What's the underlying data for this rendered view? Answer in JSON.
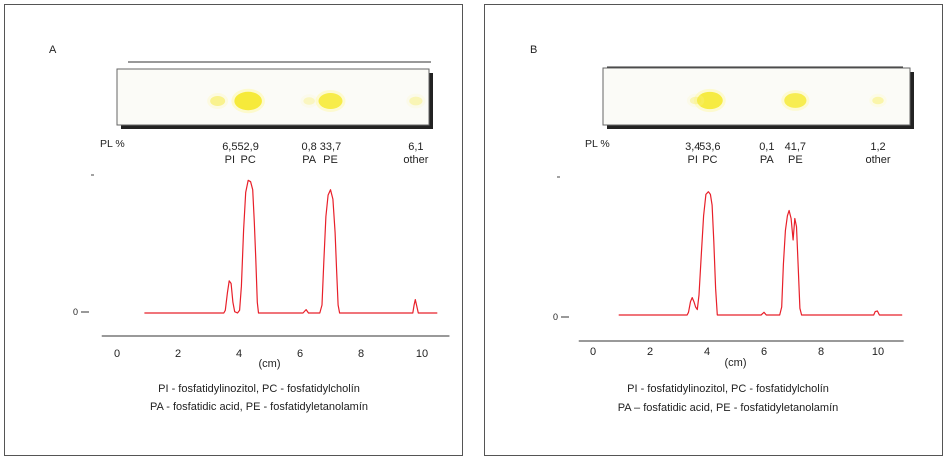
{
  "chart_data": [
    {
      "type": "line",
      "panel_label": "A",
      "pl_label": "PL %",
      "lipids": [
        {
          "name": "PI",
          "percent": "6,5",
          "x_cm": 3.7
        },
        {
          "name": "PC",
          "percent": "52,9",
          "x_cm": 4.3
        },
        {
          "name": "PA",
          "percent": "0,8",
          "x_cm": 6.3
        },
        {
          "name": "PE",
          "percent": "33,7",
          "x_cm": 7.0
        },
        {
          "name": "other",
          "percent": "6,1",
          "x_cm": 9.8
        }
      ],
      "xlabel": "(cm)",
      "x_ticks": [
        "0",
        "2",
        "4",
        "6",
        "8",
        "10"
      ],
      "y_ticks": [
        "0"
      ],
      "xlim": [
        -0.5,
        10.9
      ],
      "ylim": [
        0,
        1
      ],
      "series": [
        {
          "color": "#e8202a",
          "points": [
            [
              0.9,
              0
            ],
            [
              3.5,
              0
            ],
            [
              3.55,
              0.02
            ],
            [
              3.62,
              0.15
            ],
            [
              3.68,
              0.24
            ],
            [
              3.74,
              0.22
            ],
            [
              3.8,
              0.08
            ],
            [
              3.86,
              0.01
            ],
            [
              3.95,
              0
            ],
            [
              4.02,
              0.02
            ],
            [
              4.08,
              0.2
            ],
            [
              4.15,
              0.62
            ],
            [
              4.22,
              0.9
            ],
            [
              4.3,
              0.99
            ],
            [
              4.38,
              0.98
            ],
            [
              4.45,
              0.92
            ],
            [
              4.5,
              0.68
            ],
            [
              4.55,
              0.4
            ],
            [
              4.6,
              0.08
            ],
            [
              4.64,
              0
            ],
            [
              5.0,
              0
            ],
            [
              6.1,
              0
            ],
            [
              6.2,
              0.025
            ],
            [
              6.28,
              0
            ],
            [
              6.65,
              0
            ],
            [
              6.72,
              0.06
            ],
            [
              6.78,
              0.38
            ],
            [
              6.85,
              0.72
            ],
            [
              6.92,
              0.88
            ],
            [
              7.0,
              0.92
            ],
            [
              7.08,
              0.85
            ],
            [
              7.15,
              0.6
            ],
            [
              7.2,
              0.32
            ],
            [
              7.25,
              0.06
            ],
            [
              7.3,
              0
            ],
            [
              9.7,
              0
            ],
            [
              9.74,
              0.06
            ],
            [
              9.78,
              0.1
            ],
            [
              9.83,
              0.05
            ],
            [
              9.88,
              0
            ],
            [
              10.5,
              0
            ]
          ]
        }
      ],
      "legend_lines": [
        "PI - fosfatidylinozitol, PC - fosfatidylcholín",
        "PA - fosfatidic acid, PE - fosfatidyletanolamín"
      ],
      "plate_spots": [
        {
          "x_cm": 3.3,
          "size": 0.5,
          "intensity": 0.5
        },
        {
          "x_cm": 4.3,
          "size": 1.2,
          "intensity": 1.0
        },
        {
          "x_cm": 6.3,
          "size": 0.3,
          "intensity": 0.25
        },
        {
          "x_cm": 7.0,
          "size": 1.0,
          "intensity": 0.9
        },
        {
          "x_cm": 9.8,
          "size": 0.4,
          "intensity": 0.3
        }
      ]
    },
    {
      "type": "line",
      "panel_label": "B",
      "pl_label": "PL %",
      "lipids": [
        {
          "name": "PI",
          "percent": "3,4",
          "x_cm": 3.5
        },
        {
          "name": "PC",
          "percent": "53,6",
          "x_cm": 4.1
        },
        {
          "name": "PA",
          "percent": "0,1",
          "x_cm": 6.1
        },
        {
          "name": "PE",
          "percent": "41,7",
          "x_cm": 7.1
        },
        {
          "name": "other",
          "percent": "1,2",
          "x_cm": 10.0
        }
      ],
      "xlabel": "(cm)",
      "x_ticks": [
        "0",
        "2",
        "4",
        "6",
        "8",
        "10"
      ],
      "y_ticks": [
        "0"
      ],
      "xlim": [
        -0.5,
        10.9
      ],
      "ylim": [
        0,
        1
      ],
      "series": [
        {
          "color": "#e8202a",
          "points": [
            [
              0.9,
              0
            ],
            [
              3.3,
              0
            ],
            [
              3.35,
              0.02
            ],
            [
              3.42,
              0.1
            ],
            [
              3.48,
              0.13
            ],
            [
              3.54,
              0.1
            ],
            [
              3.6,
              0.06
            ],
            [
              3.66,
              0.04
            ],
            [
              3.72,
              0.15
            ],
            [
              3.8,
              0.45
            ],
            [
              3.88,
              0.74
            ],
            [
              3.96,
              0.9
            ],
            [
              4.05,
              0.92
            ],
            [
              4.12,
              0.9
            ],
            [
              4.18,
              0.82
            ],
            [
              4.24,
              0.55
            ],
            [
              4.3,
              0.2
            ],
            [
              4.36,
              0
            ],
            [
              5.0,
              0
            ],
            [
              5.9,
              0
            ],
            [
              6.0,
              0.02
            ],
            [
              6.08,
              0
            ],
            [
              6.55,
              0
            ],
            [
              6.62,
              0.06
            ],
            [
              6.68,
              0.38
            ],
            [
              6.75,
              0.63
            ],
            [
              6.82,
              0.74
            ],
            [
              6.88,
              0.78
            ],
            [
              6.95,
              0.72
            ],
            [
              7.02,
              0.56
            ],
            [
              7.08,
              0.72
            ],
            [
              7.14,
              0.66
            ],
            [
              7.2,
              0.36
            ],
            [
              7.26,
              0.05
            ],
            [
              7.32,
              0
            ],
            [
              9.85,
              0
            ],
            [
              9.9,
              0.025
            ],
            [
              9.98,
              0.03
            ],
            [
              10.05,
              0
            ],
            [
              10.85,
              0
            ]
          ]
        }
      ],
      "legend_lines": [
        "PI - fosfatidylinozitol, PC - fosfatidylcholín",
        "PA – fosfatidic acid, PE - fosfatidyletanolamín"
      ],
      "plate_spots": [
        {
          "x_cm": 4.1,
          "size": 1.1,
          "intensity": 0.95
        },
        {
          "x_cm": 3.6,
          "size": 0.3,
          "intensity": 0.3
        },
        {
          "x_cm": 7.1,
          "size": 0.9,
          "intensity": 0.85
        },
        {
          "x_cm": 10.0,
          "size": 0.3,
          "intensity": 0.35
        }
      ]
    }
  ]
}
